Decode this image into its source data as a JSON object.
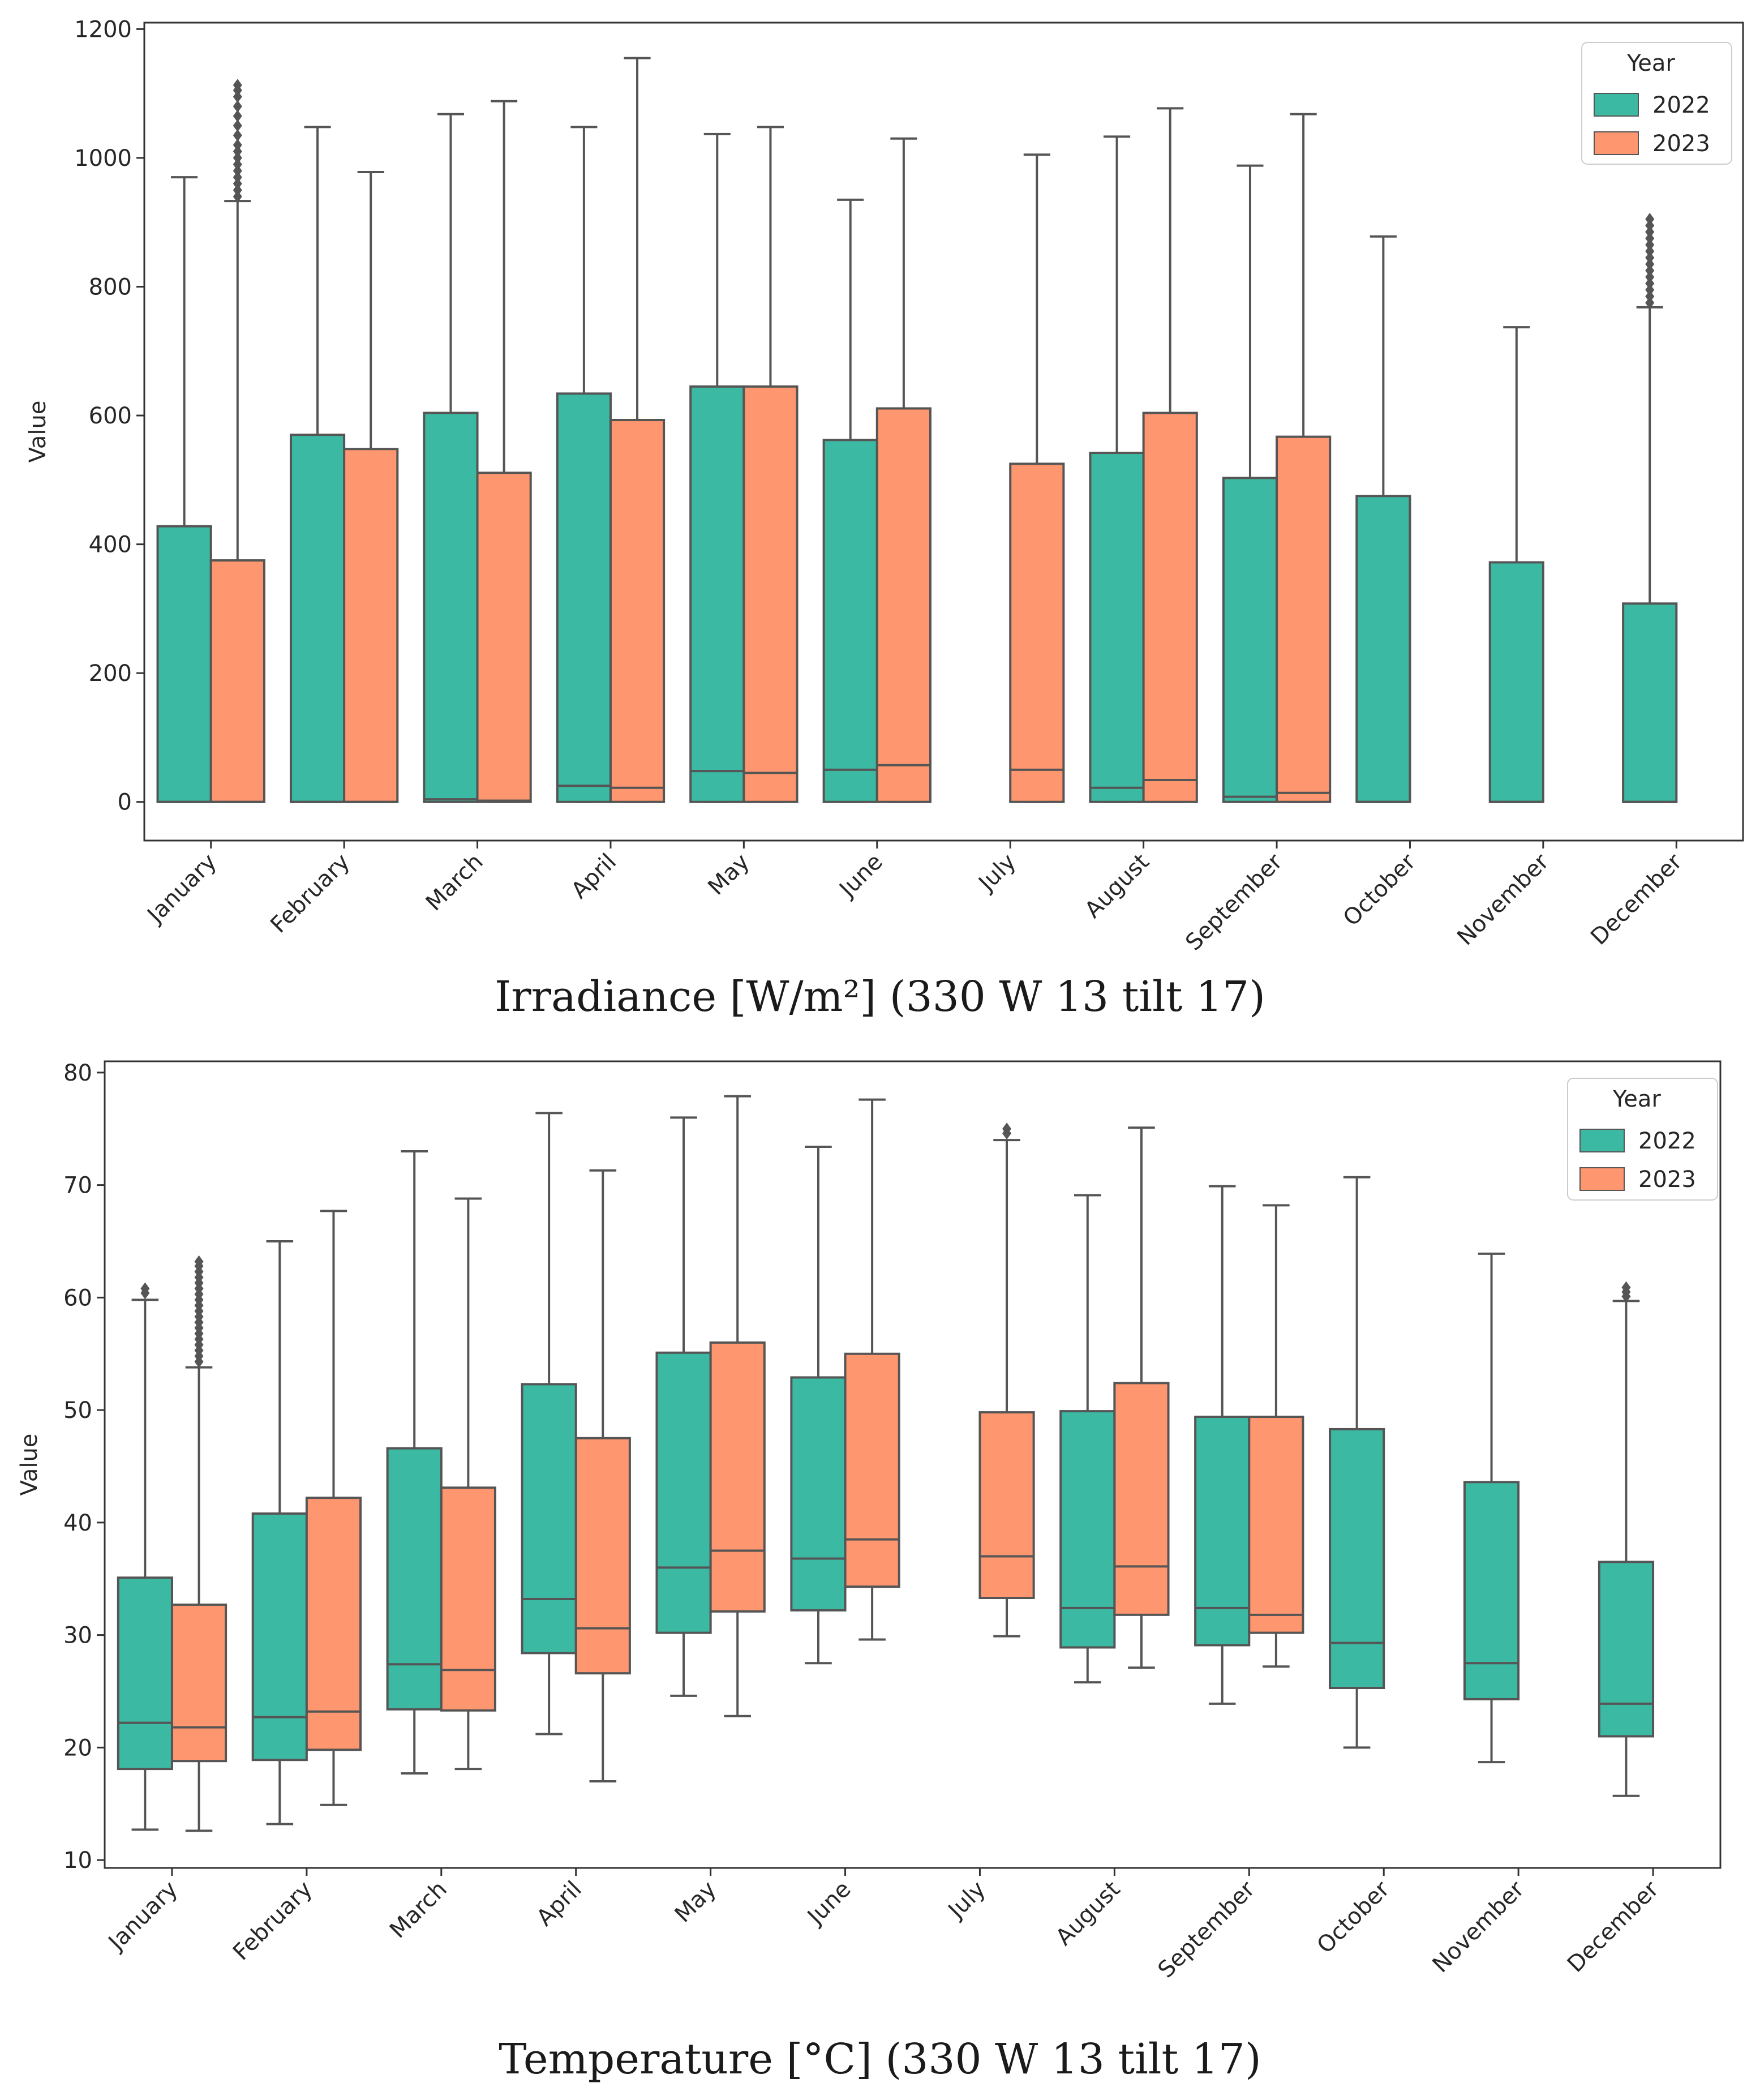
{
  "chart_data": [
    {
      "type": "boxplot",
      "title": "Irradiance [W/m²] (330 W 13 tilt 17)",
      "xlabel": "",
      "ylabel": "Value",
      "ylim": [
        -60,
        1210
      ],
      "yticks": [
        0,
        200,
        400,
        600,
        800,
        1000,
        1200
      ],
      "categories": [
        "January",
        "February",
        "March",
        "April",
        "May",
        "June",
        "July",
        "August",
        "September",
        "October",
        "November",
        "December"
      ],
      "legend": {
        "title": "Year",
        "position": "top-right",
        "entries": [
          "2022",
          "2023"
        ]
      },
      "colors": {
        "2022": "#3cb9a2",
        "2023": "#fe966f",
        "line": "#555555"
      },
      "series": [
        {
          "name": "2022",
          "boxes": [
            {
              "category": "January",
              "whislo": 0,
              "q1": 0,
              "med": 0,
              "q3": 428,
              "whishi": 970,
              "fliers": []
            },
            {
              "category": "February",
              "whislo": 0,
              "q1": 0,
              "med": 0,
              "q3": 570,
              "whishi": 1048,
              "fliers": []
            },
            {
              "category": "March",
              "whislo": 0,
              "q1": 0,
              "med": 4,
              "q3": 604,
              "whishi": 1068,
              "fliers": []
            },
            {
              "category": "April",
              "whislo": 0,
              "q1": 0,
              "med": 25,
              "q3": 634,
              "whishi": 1048,
              "fliers": []
            },
            {
              "category": "May",
              "whislo": 0,
              "q1": 0,
              "med": 48,
              "q3": 645,
              "whishi": 1037,
              "fliers": []
            },
            {
              "category": "June",
              "whislo": 0,
              "q1": 0,
              "med": 50,
              "q3": 562,
              "whishi": 935,
              "fliers": []
            },
            null,
            {
              "category": "August",
              "whislo": 0,
              "q1": 0,
              "med": 22,
              "q3": 542,
              "whishi": 1033,
              "fliers": []
            },
            {
              "category": "September",
              "whislo": 0,
              "q1": 0,
              "med": 8,
              "q3": 503,
              "whishi": 988,
              "fliers": []
            },
            {
              "category": "October",
              "whislo": 0,
              "q1": 0,
              "med": 0,
              "q3": 475,
              "whishi": 878,
              "fliers": []
            },
            {
              "category": "November",
              "whislo": 0,
              "q1": 0,
              "med": 0,
              "q3": 372,
              "whishi": 737,
              "fliers": []
            },
            {
              "category": "December",
              "whislo": 0,
              "q1": 0,
              "med": 0,
              "q3": 308,
              "whishi": 768,
              "fliers": [
                775,
                785,
                795,
                805,
                815,
                825,
                835,
                845,
                855,
                865,
                875,
                885,
                895,
                905
              ]
            }
          ]
        },
        {
          "name": "2023",
          "boxes": [
            {
              "category": "January",
              "whislo": 0,
              "q1": 0,
              "med": 0,
              "q3": 375,
              "whishi": 933,
              "fliers": [
                940,
                950,
                960,
                970,
                980,
                990,
                1000,
                1010,
                1020,
                1035,
                1050,
                1065,
                1080,
                1095,
                1105,
                1113
              ]
            },
            {
              "category": "February",
              "whislo": 0,
              "q1": 0,
              "med": 0,
              "q3": 548,
              "whishi": 978,
              "fliers": []
            },
            {
              "category": "March",
              "whislo": 0,
              "q1": 0,
              "med": 2,
              "q3": 511,
              "whishi": 1088,
              "fliers": []
            },
            {
              "category": "April",
              "whislo": 0,
              "q1": 0,
              "med": 22,
              "q3": 593,
              "whishi": 1155,
              "fliers": []
            },
            {
              "category": "May",
              "whislo": 0,
              "q1": 0,
              "med": 45,
              "q3": 645,
              "whishi": 1048,
              "fliers": []
            },
            {
              "category": "June",
              "whislo": 0,
              "q1": 0,
              "med": 57,
              "q3": 611,
              "whishi": 1030,
              "fliers": []
            },
            {
              "category": "July",
              "whislo": 0,
              "q1": 0,
              "med": 50,
              "q3": 525,
              "whishi": 1005,
              "fliers": []
            },
            {
              "category": "August",
              "whislo": 0,
              "q1": 0,
              "med": 34,
              "q3": 604,
              "whishi": 1077,
              "fliers": []
            },
            {
              "category": "September",
              "whislo": 0,
              "q1": 0,
              "med": 14,
              "q3": 567,
              "whishi": 1068,
              "fliers": []
            },
            null,
            null,
            null
          ]
        }
      ]
    },
    {
      "type": "boxplot",
      "title": "Temperature [°C] (330 W 13 tilt 17)",
      "xlabel": "",
      "ylabel": "Value",
      "ylim": [
        9.3,
        81
      ],
      "yticks": [
        10,
        20,
        30,
        40,
        50,
        60,
        70,
        80
      ],
      "categories": [
        "January",
        "February",
        "March",
        "April",
        "May",
        "June",
        "July",
        "August",
        "September",
        "October",
        "November",
        "December"
      ],
      "legend": {
        "title": "Year",
        "position": "top-right",
        "entries": [
          "2022",
          "2023"
        ]
      },
      "colors": {
        "2022": "#3cb9a2",
        "2023": "#fe966f",
        "line": "#555555"
      },
      "series": [
        {
          "name": "2022",
          "boxes": [
            {
              "category": "January",
              "whislo": 12.7,
              "q1": 18.1,
              "med": 22.2,
              "q3": 35.1,
              "whishi": 59.8,
              "fliers": [
                60.4,
                60.8
              ]
            },
            {
              "category": "February",
              "whislo": 13.2,
              "q1": 18.9,
              "med": 22.7,
              "q3": 40.8,
              "whishi": 65.0,
              "fliers": []
            },
            {
              "category": "March",
              "whislo": 17.7,
              "q1": 23.4,
              "med": 27.4,
              "q3": 46.6,
              "whishi": 73.0,
              "fliers": []
            },
            {
              "category": "April",
              "whislo": 21.2,
              "q1": 28.4,
              "med": 33.2,
              "q3": 52.3,
              "whishi": 76.4,
              "fliers": []
            },
            {
              "category": "May",
              "whislo": 24.6,
              "q1": 30.2,
              "med": 36.0,
              "q3": 55.1,
              "whishi": 76.0,
              "fliers": []
            },
            {
              "category": "June",
              "whislo": 27.5,
              "q1": 32.2,
              "med": 36.8,
              "q3": 52.9,
              "whishi": 73.4,
              "fliers": []
            },
            null,
            {
              "category": "August",
              "whislo": 25.8,
              "q1": 28.9,
              "med": 32.4,
              "q3": 49.9,
              "whishi": 69.1,
              "fliers": []
            },
            {
              "category": "September",
              "whislo": 23.9,
              "q1": 29.1,
              "med": 32.4,
              "q3": 49.4,
              "whishi": 69.9,
              "fliers": []
            },
            {
              "category": "October",
              "whislo": 20.0,
              "q1": 25.3,
              "med": 29.3,
              "q3": 48.3,
              "whishi": 70.7,
              "fliers": []
            },
            {
              "category": "November",
              "whislo": 18.7,
              "q1": 24.3,
              "med": 27.5,
              "q3": 43.6,
              "whishi": 63.9,
              "fliers": []
            },
            {
              "category": "December",
              "whislo": 15.7,
              "q1": 21.0,
              "med": 23.9,
              "q3": 36.5,
              "whishi": 59.7,
              "fliers": [
                60.1,
                60.5,
                60.9
              ]
            }
          ]
        },
        {
          "name": "2023",
          "boxes": [
            {
              "category": "January",
              "whislo": 12.6,
              "q1": 18.8,
              "med": 21.8,
              "q3": 32.7,
              "whishi": 53.8,
              "fliers": [
                54.3,
                54.8,
                55.3,
                55.8,
                56.3,
                56.8,
                57.3,
                57.8,
                58.3,
                58.8,
                59.3,
                59.8,
                60.3,
                60.8,
                61.3,
                61.8,
                62.3,
                62.8,
                63.2
              ]
            },
            {
              "category": "February",
              "whislo": 14.9,
              "q1": 19.8,
              "med": 23.2,
              "q3": 42.2,
              "whishi": 67.7,
              "fliers": []
            },
            {
              "category": "March",
              "whislo": 18.1,
              "q1": 23.3,
              "med": 26.9,
              "q3": 43.1,
              "whishi": 68.8,
              "fliers": []
            },
            {
              "category": "April",
              "whislo": 17.0,
              "q1": 26.6,
              "med": 30.6,
              "q3": 47.5,
              "whishi": 71.3,
              "fliers": []
            },
            {
              "category": "May",
              "whislo": 22.8,
              "q1": 32.1,
              "med": 37.5,
              "q3": 56.0,
              "whishi": 77.9,
              "fliers": []
            },
            {
              "category": "June",
              "whislo": 29.6,
              "q1": 34.3,
              "med": 38.5,
              "q3": 55.0,
              "whishi": 77.6,
              "fliers": []
            },
            {
              "category": "July",
              "whislo": 29.9,
              "q1": 33.3,
              "med": 37.0,
              "q3": 49.8,
              "whishi": 74.0,
              "fliers": [
                74.6,
                75.0
              ]
            },
            {
              "category": "August",
              "whislo": 27.1,
              "q1": 31.8,
              "med": 36.1,
              "q3": 52.4,
              "whishi": 75.1,
              "fliers": []
            },
            {
              "category": "September",
              "whislo": 27.2,
              "q1": 30.2,
              "med": 31.8,
              "q3": 49.4,
              "whishi": 68.2,
              "fliers": []
            },
            null,
            null,
            null
          ]
        }
      ]
    }
  ]
}
